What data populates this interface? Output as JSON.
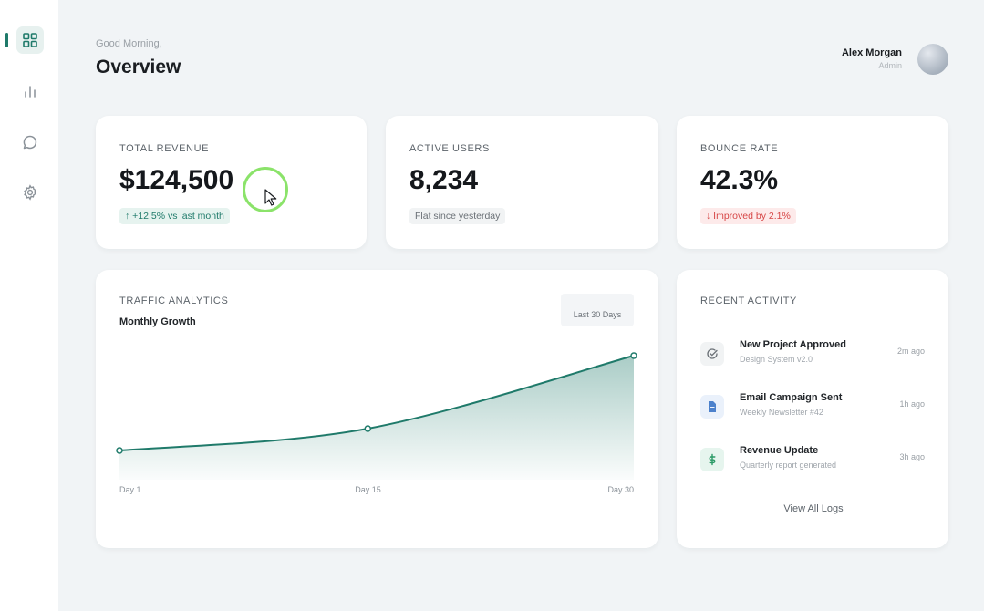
{
  "header": {
    "greeting": "Good Morning,",
    "title": "Overview"
  },
  "user": {
    "name": "Alex Morgan",
    "role": "Admin"
  },
  "sidebar": {
    "items": [
      {
        "icon": "grid-icon",
        "active": true
      },
      {
        "icon": "bar-chart-icon",
        "active": false
      },
      {
        "icon": "chat-icon",
        "active": false
      },
      {
        "icon": "gear-icon",
        "active": false
      }
    ]
  },
  "stats": {
    "revenue": {
      "label": "TOTAL REVENUE",
      "value": "$124,500",
      "badge": "↑ +12.5% vs last month"
    },
    "users": {
      "label": "ACTIVE USERS",
      "value": "8,234",
      "badge": "Flat since yesterday"
    },
    "bounce": {
      "label": "BOUNCE RATE",
      "value": "42.3%",
      "badge": "↓ Improved by 2.1%"
    }
  },
  "traffic": {
    "label": "TRAFFIC ANALYTICS",
    "subtitle": "Monthly Growth",
    "range_label": "Last 30 Days"
  },
  "chart_data": {
    "type": "area",
    "x_labels": [
      "Day 1",
      "Day 15",
      "Day 30"
    ],
    "x": [
      1,
      15,
      30
    ],
    "values": [
      20,
      35,
      85
    ],
    "ylim": [
      0,
      100
    ],
    "grid": false,
    "color": "#1f7a6a"
  },
  "activity": {
    "label": "RECENT ACTIVITY",
    "items": [
      {
        "title": "New Project Approved",
        "sub": "Design System v2.0",
        "time": "2m ago",
        "icon": "check-circle-icon"
      },
      {
        "title": "Email Campaign Sent",
        "sub": "Weekly Newsletter #42",
        "time": "1h ago",
        "icon": "document-icon"
      },
      {
        "title": "Revenue Update",
        "sub": "Quarterly report generated",
        "time": "3h ago",
        "icon": "dollar-icon"
      }
    ],
    "view_all": "View All Logs"
  },
  "colors": {
    "accent": "#1f7a6a",
    "positive": "#1f7a6a",
    "negative": "#d64545",
    "cursor_ring": "#8be36a"
  }
}
